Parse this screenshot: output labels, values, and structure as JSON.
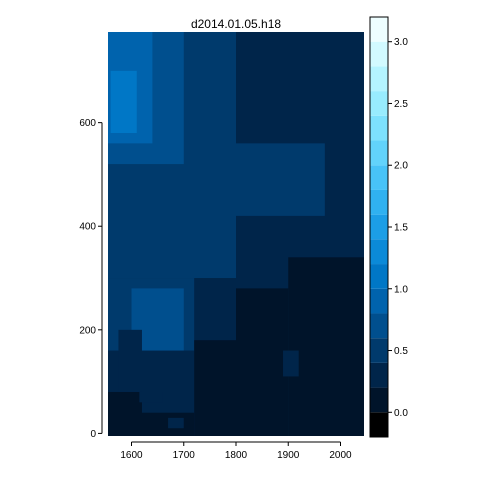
{
  "chart_data": {
    "type": "heatmap",
    "title": "d2014.01.05.h18",
    "xlabel": "",
    "ylabel": "",
    "xlim": [
      1555,
      2045
    ],
    "ylim": [
      -5,
      775
    ],
    "x_ticks": [
      1600,
      1700,
      1800,
      1900,
      2000
    ],
    "y_ticks": [
      0,
      200,
      400,
      600
    ],
    "colorbar": {
      "ticks": [
        0.0,
        0.5,
        1.0,
        1.5,
        2.0,
        2.5,
        3.0
      ],
      "tick_labels": [
        "0.0",
        "0.5",
        "1.0",
        "1.5",
        "2.0",
        "2.5",
        "3.0"
      ],
      "breaks": [
        -0.2,
        0.0,
        0.2,
        0.4,
        0.6,
        0.8,
        1.0,
        1.2,
        1.4,
        1.6,
        1.8,
        2.0,
        2.2,
        2.4,
        2.6,
        2.8,
        3.0,
        3.2
      ],
      "colors": [
        "#000000",
        "#00142a",
        "#00254a",
        "#003a6c",
        "#004f8e",
        "#0063ad",
        "#0077c6",
        "#0b8ad8",
        "#1c9ee6",
        "#30b1f0",
        "#48c3f7",
        "#62d3fb",
        "#7de1fd",
        "#98ecfe",
        "#b4f4ff",
        "#d2faff",
        "#eefeff"
      ]
    },
    "regions": [
      {
        "value": 0.2,
        "x": [
          1555,
          2045
        ],
        "y": [
          -5,
          775
        ]
      },
      {
        "value": 0.4,
        "x": [
          1555,
          1800
        ],
        "y": [
          300,
          775
        ]
      },
      {
        "value": 0.4,
        "x": [
          1800,
          1970
        ],
        "y": [
          420,
          560
        ]
      },
      {
        "value": 0.4,
        "x": [
          1555,
          1720
        ],
        "y": [
          160,
          300
        ]
      },
      {
        "value": 0.6,
        "x": [
          1555,
          1700
        ],
        "y": [
          520,
          775
        ]
      },
      {
        "value": 0.6,
        "x": [
          1600,
          1700
        ],
        "y": [
          160,
          280
        ]
      },
      {
        "value": 0.8,
        "x": [
          1555,
          1640
        ],
        "y": [
          560,
          775
        ]
      },
      {
        "value": 1.0,
        "x": [
          1560,
          1610
        ],
        "y": [
          580,
          700
        ]
      },
      {
        "value": 0.0,
        "x": [
          1555,
          1620
        ],
        "y": [
          -5,
          80
        ]
      },
      {
        "value": 0.0,
        "x": [
          1620,
          1720
        ],
        "y": [
          -5,
          40
        ]
      },
      {
        "value": 0.0,
        "x": [
          1720,
          1800
        ],
        "y": [
          -5,
          180
        ]
      },
      {
        "value": 0.0,
        "x": [
          1800,
          1900
        ],
        "y": [
          -5,
          280
        ]
      },
      {
        "value": 0.0,
        "x": [
          1900,
          2045
        ],
        "y": [
          -5,
          340
        ]
      },
      {
        "value": 0.2,
        "x": [
          1615,
          1660
        ],
        "y": [
          60,
          80
        ]
      },
      {
        "value": 0.2,
        "x": [
          1575,
          1620
        ],
        "y": [
          80,
          200
        ]
      },
      {
        "value": 0.2,
        "x": [
          1670,
          1700
        ],
        "y": [
          10,
          30
        ]
      },
      {
        "value": 0.2,
        "x": [
          1890,
          1920
        ],
        "y": [
          110,
          160
        ]
      }
    ]
  }
}
